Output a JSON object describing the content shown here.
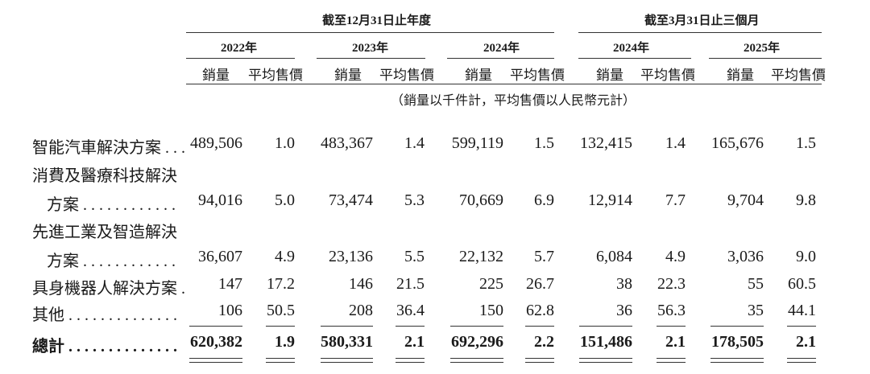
{
  "header": {
    "period_year": "截至12月31日止年度",
    "period_q": "截至3月31日止三個月",
    "years": [
      "2022年",
      "2023年",
      "2024年",
      "2024年",
      "2025年"
    ],
    "col_volume": "銷量",
    "col_price": "平均售價",
    "unit_note": "（銷量以千件計，平均售價以人民幣元計）"
  },
  "rows": [
    {
      "label_lines": [
        "智能汽車解決方案 . . ."
      ],
      "values": [
        "489,506",
        "1.0",
        "483,367",
        "1.4",
        "599,119",
        "1.5",
        "132,415",
        "1.4",
        "165,676",
        "1.5"
      ]
    },
    {
      "label_lines": [
        "消費及醫療科技解決",
        "方案 . . . . . . . . . . . ."
      ],
      "values": [
        "94,016",
        "5.0",
        "73,474",
        "5.3",
        "70,669",
        "6.9",
        "12,914",
        "7.7",
        "9,704",
        "9.8"
      ]
    },
    {
      "label_lines": [
        "先進工業及智造解決",
        "方案 . . . . . . . . . . . ."
      ],
      "values": [
        "36,607",
        "4.9",
        "23,136",
        "5.5",
        "22,132",
        "5.7",
        "6,084",
        "4.9",
        "3,036",
        "9.0"
      ]
    },
    {
      "label_lines": [
        "具身機器人解決方案 ."
      ],
      "values": [
        "147",
        "17.2",
        "146",
        "21.5",
        "225",
        "26.7",
        "38",
        "22.3",
        "55",
        "60.5"
      ]
    },
    {
      "label_lines": [
        "其他 . . . . . . . . . . . . . ."
      ],
      "values": [
        "106",
        "50.5",
        "208",
        "36.4",
        "150",
        "62.8",
        "36",
        "56.3",
        "35",
        "44.1"
      ]
    }
  ],
  "total": {
    "label": "總計 . . . . . . . . . . . . . .",
    "values": [
      "620,382",
      "1.9",
      "580,331",
      "2.1",
      "692,296",
      "2.2",
      "151,486",
      "2.1",
      "178,505",
      "2.1"
    ]
  }
}
